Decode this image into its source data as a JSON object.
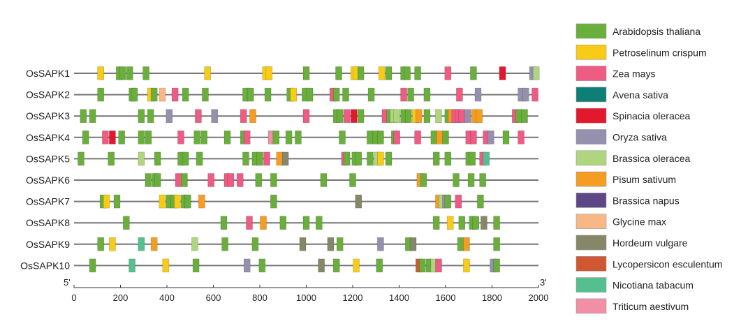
{
  "chart_data": {
    "type": "motif-diagram",
    "xlim": [
      0,
      2000
    ],
    "xticks": [
      0,
      200,
      400,
      600,
      800,
      1000,
      1200,
      1400,
      1600,
      1800,
      2000
    ],
    "tick_labels": [
      "0",
      "200",
      "400",
      "600",
      "800",
      "1000",
      "1200",
      "1400",
      "1600",
      "1800",
      "2000"
    ],
    "five_prime_label": "5'",
    "three_prime_label": "3'",
    "legend": [
      {
        "name": "Arabidopsis thaliana",
        "color": "#6aaf3c"
      },
      {
        "name": "Petroselinum crispum",
        "color": "#f8cc16"
      },
      {
        "name": "Zea mays",
        "color": "#ee5b83"
      },
      {
        "name": "Avena sativa",
        "color": "#0d7f77"
      },
      {
        "name": "Spinacia oleracea",
        "color": "#e3182d"
      },
      {
        "name": "Oryza sativa",
        "color": "#9490ad"
      },
      {
        "name": "Brassica oleracea",
        "color": "#b0d57f"
      },
      {
        "name": "Pisum sativum",
        "color": "#f59d23"
      },
      {
        "name": "Brassica napus",
        "color": "#5e4786"
      },
      {
        "name": "Glycine max",
        "color": "#f8b885"
      },
      {
        "name": "Hordeum vulgare",
        "color": "#858768"
      },
      {
        "name": "Lycopersicon esculentum",
        "color": "#cf5833"
      },
      {
        "name": "Nicotiana tabacum",
        "color": "#56bf8f"
      },
      {
        "name": "Triticum aestivum",
        "color": "#f08fa6"
      }
    ],
    "sequences": [
      {
        "name": "OsSAPK1",
        "motifs": [
          {
            "pos": 115,
            "s": 1
          },
          {
            "pos": 195,
            "s": 0
          },
          {
            "pos": 210,
            "s": 0
          },
          {
            "pos": 240,
            "s": 0
          },
          {
            "pos": 310,
            "s": 0
          },
          {
            "pos": 575,
            "s": 1
          },
          {
            "pos": 825,
            "s": 1
          },
          {
            "pos": 840,
            "s": 1
          },
          {
            "pos": 1000,
            "s": 0
          },
          {
            "pos": 1140,
            "s": 0
          },
          {
            "pos": 1205,
            "s": 1
          },
          {
            "pos": 1215,
            "s": 1
          },
          {
            "pos": 1235,
            "s": 0
          },
          {
            "pos": 1325,
            "s": 1
          },
          {
            "pos": 1355,
            "s": 0
          },
          {
            "pos": 1420,
            "s": 0
          },
          {
            "pos": 1435,
            "s": 0
          },
          {
            "pos": 1480,
            "s": 0
          },
          {
            "pos": 1610,
            "s": 2
          },
          {
            "pos": 1720,
            "s": 0
          },
          {
            "pos": 1845,
            "s": 4
          },
          {
            "pos": 1975,
            "s": 5
          },
          {
            "pos": 1990,
            "s": 6
          }
        ]
      },
      {
        "name": "OsSAPK2",
        "motifs": [
          {
            "pos": 115,
            "s": 0
          },
          {
            "pos": 250,
            "s": 0
          },
          {
            "pos": 260,
            "s": 0
          },
          {
            "pos": 330,
            "s": 1
          },
          {
            "pos": 345,
            "s": 0
          },
          {
            "pos": 380,
            "s": 9
          },
          {
            "pos": 435,
            "s": 2
          },
          {
            "pos": 480,
            "s": 0
          },
          {
            "pos": 565,
            "s": 0
          },
          {
            "pos": 740,
            "s": 0
          },
          {
            "pos": 760,
            "s": 0
          },
          {
            "pos": 835,
            "s": 0
          },
          {
            "pos": 930,
            "s": 0
          },
          {
            "pos": 945,
            "s": 1
          },
          {
            "pos": 995,
            "s": 0
          },
          {
            "pos": 1015,
            "s": 0
          },
          {
            "pos": 1115,
            "s": 2
          },
          {
            "pos": 1130,
            "s": 0
          },
          {
            "pos": 1170,
            "s": 0
          },
          {
            "pos": 1280,
            "s": 0
          },
          {
            "pos": 1420,
            "s": 2
          },
          {
            "pos": 1450,
            "s": 0
          },
          {
            "pos": 1520,
            "s": 0
          },
          {
            "pos": 1660,
            "s": 2
          },
          {
            "pos": 1740,
            "s": 5
          },
          {
            "pos": 1925,
            "s": 5
          },
          {
            "pos": 1945,
            "s": 5
          },
          {
            "pos": 1985,
            "s": 2
          }
        ]
      },
      {
        "name": "OsSAPK3",
        "motifs": [
          {
            "pos": 40,
            "s": 0
          },
          {
            "pos": 80,
            "s": 0
          },
          {
            "pos": 290,
            "s": 0
          },
          {
            "pos": 330,
            "s": 0
          },
          {
            "pos": 410,
            "s": 5
          },
          {
            "pos": 535,
            "s": 2
          },
          {
            "pos": 605,
            "s": 5
          },
          {
            "pos": 730,
            "s": 2
          },
          {
            "pos": 770,
            "s": 7
          },
          {
            "pos": 1000,
            "s": 2
          },
          {
            "pos": 1130,
            "s": 0
          },
          {
            "pos": 1145,
            "s": 0
          },
          {
            "pos": 1175,
            "s": 2
          },
          {
            "pos": 1205,
            "s": 4
          },
          {
            "pos": 1235,
            "s": 0
          },
          {
            "pos": 1340,
            "s": 2
          },
          {
            "pos": 1360,
            "s": 0
          },
          {
            "pos": 1375,
            "s": 6
          },
          {
            "pos": 1390,
            "s": 6
          },
          {
            "pos": 1420,
            "s": 0
          },
          {
            "pos": 1440,
            "s": 0
          },
          {
            "pos": 1470,
            "s": 1
          },
          {
            "pos": 1485,
            "s": 7
          },
          {
            "pos": 1520,
            "s": 0
          },
          {
            "pos": 1570,
            "s": 6
          },
          {
            "pos": 1610,
            "s": 0
          },
          {
            "pos": 1625,
            "s": 7
          },
          {
            "pos": 1640,
            "s": 2
          },
          {
            "pos": 1655,
            "s": 2
          },
          {
            "pos": 1670,
            "s": 2
          },
          {
            "pos": 1695,
            "s": 5
          },
          {
            "pos": 1725,
            "s": 7
          },
          {
            "pos": 1745,
            "s": 7
          },
          {
            "pos": 1900,
            "s": 2
          },
          {
            "pos": 1915,
            "s": 0
          },
          {
            "pos": 1940,
            "s": 0
          }
        ]
      },
      {
        "name": "OsSAPK4",
        "motifs": [
          {
            "pos": 50,
            "s": 0
          },
          {
            "pos": 135,
            "s": 2
          },
          {
            "pos": 165,
            "s": 4
          },
          {
            "pos": 205,
            "s": 0
          },
          {
            "pos": 290,
            "s": 0
          },
          {
            "pos": 320,
            "s": 0
          },
          {
            "pos": 460,
            "s": 2
          },
          {
            "pos": 530,
            "s": 0
          },
          {
            "pos": 560,
            "s": 0
          },
          {
            "pos": 660,
            "s": 0
          },
          {
            "pos": 730,
            "s": 0
          },
          {
            "pos": 745,
            "s": 2
          },
          {
            "pos": 850,
            "s": 13
          },
          {
            "pos": 870,
            "s": 0
          },
          {
            "pos": 925,
            "s": 0
          },
          {
            "pos": 965,
            "s": 0
          },
          {
            "pos": 1155,
            "s": 0
          },
          {
            "pos": 1275,
            "s": 0
          },
          {
            "pos": 1300,
            "s": 0
          },
          {
            "pos": 1320,
            "s": 0
          },
          {
            "pos": 1380,
            "s": 0
          },
          {
            "pos": 1390,
            "s": 2
          },
          {
            "pos": 1480,
            "s": 2
          },
          {
            "pos": 1550,
            "s": 0
          },
          {
            "pos": 1575,
            "s": 7
          },
          {
            "pos": 1600,
            "s": 0
          },
          {
            "pos": 1700,
            "s": 2
          },
          {
            "pos": 1720,
            "s": 2
          },
          {
            "pos": 1775,
            "s": 2
          },
          {
            "pos": 1795,
            "s": 5
          },
          {
            "pos": 1860,
            "s": 0
          },
          {
            "pos": 1925,
            "s": 2
          }
        ]
      },
      {
        "name": "OsSAPK5",
        "motifs": [
          {
            "pos": 30,
            "s": 0
          },
          {
            "pos": 160,
            "s": 0
          },
          {
            "pos": 290,
            "s": 6
          },
          {
            "pos": 360,
            "s": 0
          },
          {
            "pos": 460,
            "s": 0
          },
          {
            "pos": 480,
            "s": 0
          },
          {
            "pos": 540,
            "s": 0
          },
          {
            "pos": 740,
            "s": 0
          },
          {
            "pos": 780,
            "s": 0
          },
          {
            "pos": 800,
            "s": 0
          },
          {
            "pos": 830,
            "s": 2
          },
          {
            "pos": 885,
            "s": 7
          },
          {
            "pos": 910,
            "s": 10
          },
          {
            "pos": 1165,
            "s": 2
          },
          {
            "pos": 1175,
            "s": 0
          },
          {
            "pos": 1210,
            "s": 0
          },
          {
            "pos": 1225,
            "s": 0
          },
          {
            "pos": 1275,
            "s": 0
          },
          {
            "pos": 1305,
            "s": 6
          },
          {
            "pos": 1320,
            "s": 1
          },
          {
            "pos": 1355,
            "s": 0
          },
          {
            "pos": 1560,
            "s": 0
          },
          {
            "pos": 1610,
            "s": 0
          },
          {
            "pos": 1700,
            "s": 0
          },
          {
            "pos": 1715,
            "s": 0
          },
          {
            "pos": 1760,
            "s": 2
          },
          {
            "pos": 1775,
            "s": 12
          }
        ]
      },
      {
        "name": "OsSAPK6",
        "motifs": [
          {
            "pos": 320,
            "s": 0
          },
          {
            "pos": 350,
            "s": 0
          },
          {
            "pos": 360,
            "s": 0
          },
          {
            "pos": 450,
            "s": 2
          },
          {
            "pos": 475,
            "s": 0
          },
          {
            "pos": 590,
            "s": 2
          },
          {
            "pos": 660,
            "s": 2
          },
          {
            "pos": 675,
            "s": 2
          },
          {
            "pos": 715,
            "s": 2
          },
          {
            "pos": 795,
            "s": 0
          },
          {
            "pos": 860,
            "s": 0
          },
          {
            "pos": 1075,
            "s": 0
          },
          {
            "pos": 1200,
            "s": 0
          },
          {
            "pos": 1490,
            "s": 7
          },
          {
            "pos": 1505,
            "s": 0
          },
          {
            "pos": 1645,
            "s": 0
          },
          {
            "pos": 1710,
            "s": 0
          },
          {
            "pos": 1760,
            "s": 0
          }
        ]
      },
      {
        "name": "OsSAPK7",
        "motifs": [
          {
            "pos": 125,
            "s": 0
          },
          {
            "pos": 140,
            "s": 1
          },
          {
            "pos": 185,
            "s": 0
          },
          {
            "pos": 380,
            "s": 1
          },
          {
            "pos": 410,
            "s": 0
          },
          {
            "pos": 430,
            "s": 0
          },
          {
            "pos": 445,
            "s": 1
          },
          {
            "pos": 475,
            "s": 0
          },
          {
            "pos": 490,
            "s": 0
          },
          {
            "pos": 550,
            "s": 7
          },
          {
            "pos": 860,
            "s": 0
          },
          {
            "pos": 1225,
            "s": 10
          },
          {
            "pos": 1570,
            "s": 7
          },
          {
            "pos": 1585,
            "s": 6
          },
          {
            "pos": 1600,
            "s": 5
          },
          {
            "pos": 1610,
            "s": 0
          },
          {
            "pos": 1655,
            "s": 2
          },
          {
            "pos": 1750,
            "s": 0
          }
        ]
      },
      {
        "name": "OsSAPK8",
        "motifs": [
          {
            "pos": 225,
            "s": 0
          },
          {
            "pos": 645,
            "s": 0
          },
          {
            "pos": 755,
            "s": 2
          },
          {
            "pos": 815,
            "s": 7
          },
          {
            "pos": 900,
            "s": 0
          },
          {
            "pos": 1000,
            "s": 0
          },
          {
            "pos": 1055,
            "s": 0
          },
          {
            "pos": 1560,
            "s": 0
          },
          {
            "pos": 1620,
            "s": 1
          },
          {
            "pos": 1670,
            "s": 0
          },
          {
            "pos": 1715,
            "s": 0
          },
          {
            "pos": 1730,
            "s": 0
          },
          {
            "pos": 1765,
            "s": 10
          },
          {
            "pos": 1820,
            "s": 0
          }
        ]
      },
      {
        "name": "OsSAPK9",
        "motifs": [
          {
            "pos": 115,
            "s": 0
          },
          {
            "pos": 165,
            "s": 1
          },
          {
            "pos": 290,
            "s": 12
          },
          {
            "pos": 345,
            "s": 7
          },
          {
            "pos": 520,
            "s": 6
          },
          {
            "pos": 650,
            "s": 0
          },
          {
            "pos": 780,
            "s": 0
          },
          {
            "pos": 985,
            "s": 10
          },
          {
            "pos": 1105,
            "s": 10
          },
          {
            "pos": 1145,
            "s": 0
          },
          {
            "pos": 1320,
            "s": 5
          },
          {
            "pos": 1440,
            "s": 0
          },
          {
            "pos": 1460,
            "s": 10
          },
          {
            "pos": 1665,
            "s": 0
          },
          {
            "pos": 1690,
            "s": 7
          },
          {
            "pos": 1820,
            "s": 0
          }
        ]
      },
      {
        "name": "OsSAPK10",
        "motifs": [
          {
            "pos": 80,
            "s": 0
          },
          {
            "pos": 250,
            "s": 12
          },
          {
            "pos": 395,
            "s": 1
          },
          {
            "pos": 525,
            "s": 0
          },
          {
            "pos": 745,
            "s": 5
          },
          {
            "pos": 810,
            "s": 0
          },
          {
            "pos": 1065,
            "s": 10
          },
          {
            "pos": 1130,
            "s": 0
          },
          {
            "pos": 1215,
            "s": 1
          },
          {
            "pos": 1315,
            "s": 0
          },
          {
            "pos": 1485,
            "s": 11
          },
          {
            "pos": 1500,
            "s": 0
          },
          {
            "pos": 1530,
            "s": 0
          },
          {
            "pos": 1550,
            "s": 6
          },
          {
            "pos": 1570,
            "s": 2
          },
          {
            "pos": 1690,
            "s": 1
          },
          {
            "pos": 1805,
            "s": 5
          },
          {
            "pos": 1820,
            "s": 0
          }
        ]
      }
    ]
  }
}
